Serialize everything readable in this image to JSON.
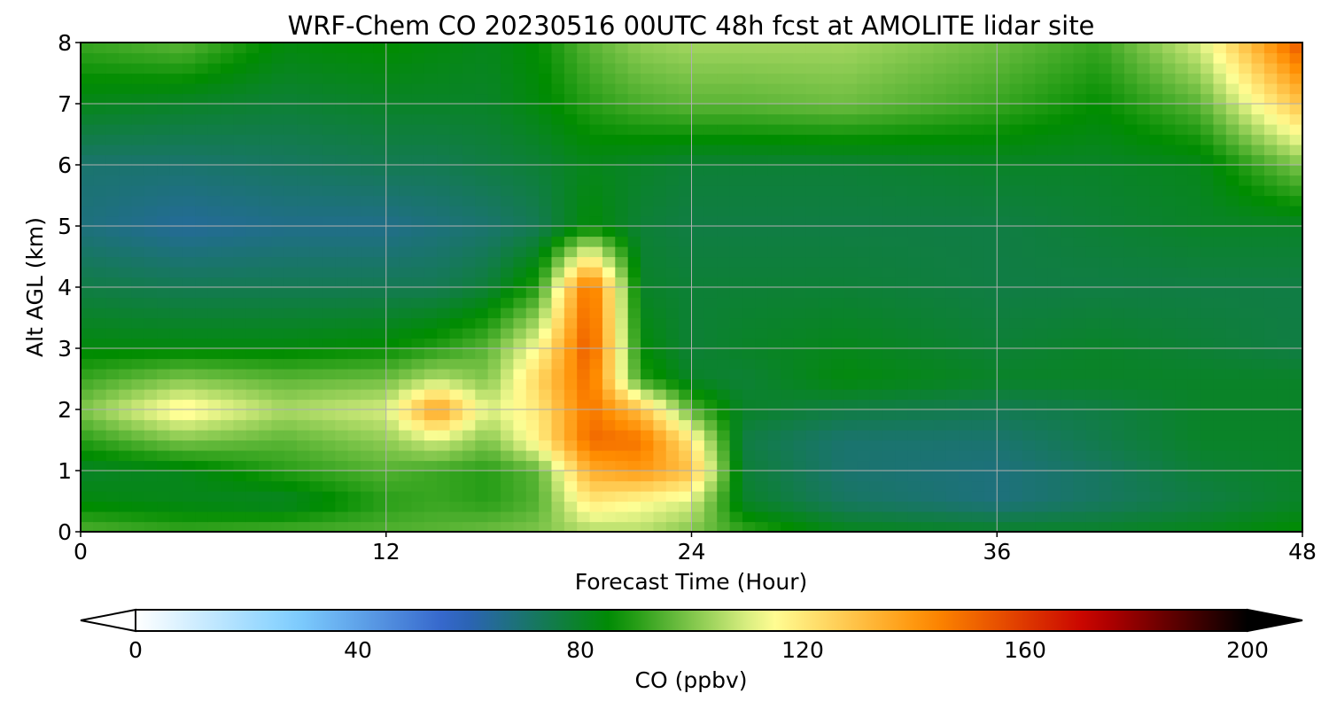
{
  "chart_data": {
    "type": "heatmap",
    "title": "WRF-Chem CO  20230516 00UTC 48h fcst at AMOLITE lidar site",
    "xlabel": "Forecast Time (Hour)",
    "ylabel": "Alt AGL (km)",
    "xlim": [
      0,
      48
    ],
    "ylim": [
      0,
      8
    ],
    "x_ticks": [
      0,
      12,
      24,
      36,
      48
    ],
    "y_ticks": [
      0,
      1,
      2,
      3,
      4,
      5,
      6,
      7,
      8
    ],
    "grid": true,
    "colorbar": {
      "label": "CO  (ppbv)",
      "range": [
        0,
        200
      ],
      "ticks": [
        0,
        40,
        80,
        120,
        160,
        200
      ],
      "extend": "both",
      "orientation": "horizontal",
      "colors": [
        "#ffffff",
        "#7fcfff",
        "#3060c8",
        "#008c00",
        "#ffff96",
        "#ff8c00",
        "#c80000",
        "#000000"
      ]
    },
    "x": [
      0,
      4,
      8,
      12,
      14,
      16,
      18,
      20,
      22,
      24,
      26,
      30,
      36,
      40,
      44,
      48
    ],
    "y": [
      0,
      0.5,
      1,
      1.5,
      2,
      2.5,
      3,
      4,
      5,
      6,
      7,
      8
    ],
    "values": [
      [
        95,
        92,
        94,
        95,
        96,
        98,
        100,
        105,
        106,
        100,
        92,
        82,
        80,
        80,
        82,
        86
      ],
      [
        84,
        82,
        80,
        90,
        92,
        90,
        95,
        120,
        115,
        110,
        80,
        72,
        68,
        72,
        76,
        80
      ],
      [
        80,
        82,
        90,
        95,
        92,
        90,
        96,
        135,
        140,
        130,
        78,
        70,
        68,
        72,
        78,
        80
      ],
      [
        90,
        100,
        96,
        102,
        110,
        100,
        118,
        150,
        148,
        120,
        76,
        70,
        70,
        75,
        80,
        80
      ],
      [
        100,
        118,
        105,
        110,
        140,
        110,
        120,
        148,
        130,
        95,
        80,
        76,
        74,
        76,
        80,
        80
      ],
      [
        92,
        100,
        96,
        98,
        106,
        100,
        125,
        150,
        90,
        80,
        78,
        84,
        80,
        80,
        80,
        80
      ],
      [
        84,
        84,
        84,
        86,
        90,
        96,
        115,
        155,
        85,
        78,
        80,
        82,
        78,
        80,
        78,
        76
      ],
      [
        76,
        74,
        74,
        74,
        74,
        78,
        90,
        152,
        80,
        78,
        78,
        78,
        76,
        76,
        76,
        76
      ],
      [
        68,
        64,
        66,
        66,
        68,
        70,
        74,
        85,
        78,
        76,
        76,
        76,
        76,
        78,
        80,
        80
      ],
      [
        70,
        70,
        72,
        74,
        74,
        76,
        78,
        82,
        80,
        78,
        78,
        78,
        80,
        80,
        82,
        100
      ],
      [
        82,
        80,
        78,
        80,
        80,
        80,
        84,
        90,
        94,
        96,
        96,
        98,
        92,
        86,
        96,
        130
      ],
      [
        92,
        96,
        84,
        86,
        84,
        82,
        86,
        96,
        102,
        104,
        104,
        104,
        98,
        92,
        110,
        155
      ]
    ]
  }
}
